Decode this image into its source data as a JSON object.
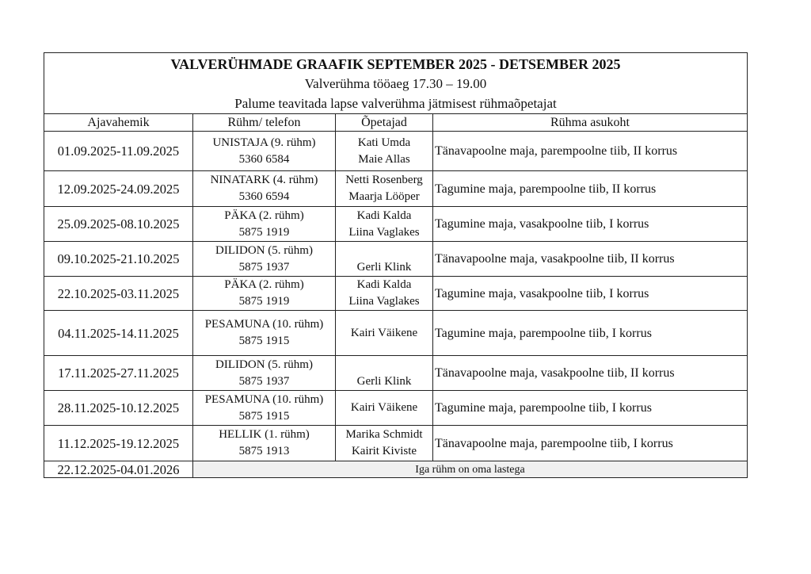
{
  "document": {
    "title": "VALVERÜHMADE GRAAFIK SEPTEMBER 2025 - DETSEMBER 2025",
    "subtitle": "Valverühma tööaeg 17.30 – 19.00",
    "notice": "Palume teavitada lapse valverühma jätmisest rühmaõpetajat",
    "columns": [
      "Ajavahemik",
      "Rühm/ telefon",
      "Õpetajad",
      "Rühma asukoht"
    ],
    "rows": [
      {
        "period": "01.09.2025-11.09.2025",
        "group": "UNISTAJA (9. rühm)",
        "phone": "5360 6584",
        "teacher1": "Kati Umda",
        "teacher2": "Maie Allas",
        "location": "Tänavapoolne maja, parempoolne tiib, II korrus"
      },
      {
        "period": "12.09.2025-24.09.2025",
        "group": "NINATARK (4. rühm)",
        "phone": "5360 6594",
        "teacher1": "Netti Rosenberg",
        "teacher2": "Maarja Lööper",
        "location": "Tagumine maja, parempoolne tiib, II korrus"
      },
      {
        "period": "25.09.2025-08.10.2025",
        "group": "PÄKA (2. rühm)",
        "phone": "5875 1919",
        "teacher1": "Kadi Kalda",
        "teacher2": "Liina Vaglakes",
        "location": "Tagumine maja, vasakpoolne tiib, I korrus"
      },
      {
        "period": "09.10.2025-21.10.2025",
        "group": "DILIDON (5. rühm)",
        "phone": "5875 1937",
        "teacher1": "",
        "teacher2": "Gerli Klink",
        "location": "Tänavapoolne maja, vasakpoolne tiib, II korrus"
      },
      {
        "period": "22.10.2025-03.11.2025",
        "group": "PÄKA (2. rühm)",
        "phone": "5875 1919",
        "teacher1": "Kadi Kalda",
        "teacher2": "Liina Vaglakes",
        "location": "Tagumine maja, vasakpoolne tiib, I korrus"
      },
      {
        "period": "04.11.2025-14.11.2025",
        "group": "PESAMUNA (10. rühm)",
        "phone": "5875 1915",
        "teacher1": "Kairi Väikene",
        "teacher2": "",
        "location": "Tagumine maja, parempoolne tiib, I korrus"
      },
      {
        "period": "17.11.2025-27.11.2025",
        "group": "DILIDON (5. rühm)",
        "phone": "5875 1937",
        "teacher1": "",
        "teacher2": "Gerli Klink",
        "location": "Tänavapoolne maja, vasakpoolne tiib, II korrus"
      },
      {
        "period": "28.11.2025-10.12.2025",
        "group": "PESAMUNA (10. rühm)",
        "phone": "5875 1915",
        "teacher1": "Kairi Väikene",
        "teacher2": "",
        "location": "Tagumine maja, parempoolne tiib, I korrus"
      },
      {
        "period": "11.12.2025-19.12.2025",
        "group": "HELLIK (1. rühm)",
        "phone": "5875 1913",
        "teacher1": "Marika Schmidt",
        "teacher2": "Kairit Kiviste",
        "location": "Tänavapoolne maja, parempoolne tiib, I korrus"
      }
    ],
    "last_row": {
      "period": "22.12.2025-04.01.2026",
      "note": "Iga rühm on oma lastega"
    }
  }
}
